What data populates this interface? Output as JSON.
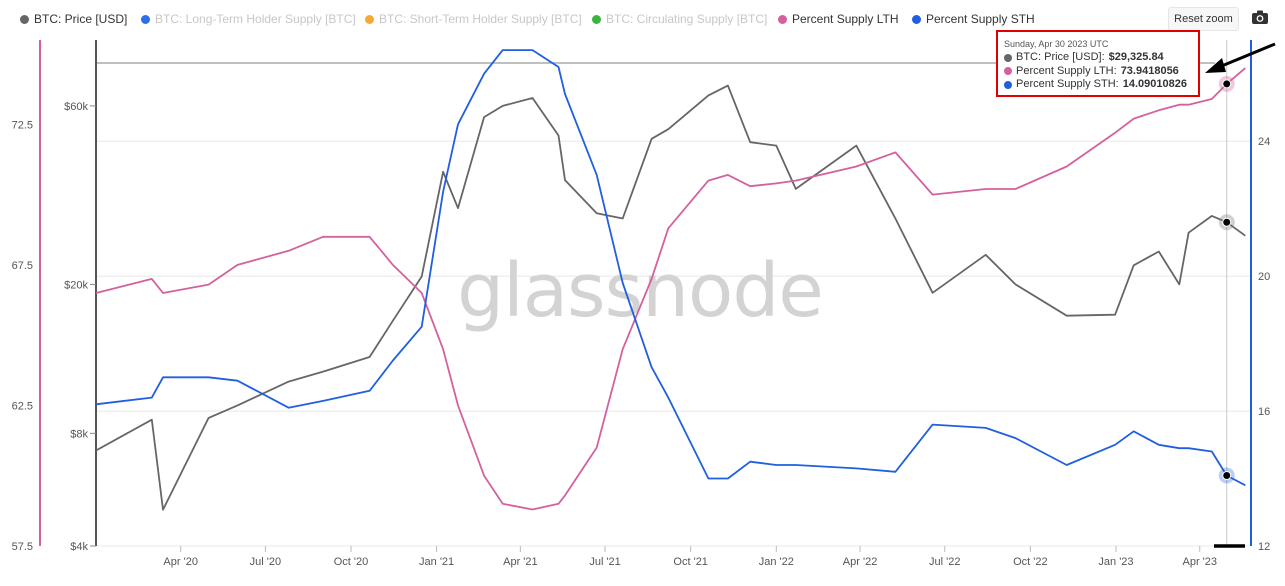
{
  "legend": [
    {
      "label": "BTC: Price [USD]",
      "color": "#666666",
      "active": true
    },
    {
      "label": "BTC: Long-Term Holder Supply [BTC]",
      "color": "#2e6ee6",
      "active": false
    },
    {
      "label": "BTC: Short-Term Holder Supply [BTC]",
      "color": "#f7a935",
      "active": false
    },
    {
      "label": "BTC: Circulating Supply [BTC]",
      "color": "#3cb33c",
      "active": false
    },
    {
      "label": "Percent Supply LTH",
      "color": "#d4619e",
      "active": true
    },
    {
      "label": "Percent Supply STH",
      "color": "#1f5fe0",
      "active": true
    }
  ],
  "toolbar": {
    "reset_zoom": "Reset zoom",
    "camera_icon": "camera-icon"
  },
  "watermark": "glassnode",
  "tooltip": {
    "date": "Sunday, Apr 30 2023 UTC",
    "rows": [
      {
        "label": "BTC: Price [USD]:",
        "value": "$29,325.84",
        "color": "#666666"
      },
      {
        "label": "Percent Supply LTH:",
        "value": "73.9418056",
        "color": "#d4619e"
      },
      {
        "label": "Percent Supply STH:",
        "value": "14.09010826",
        "color": "#1f5fe0"
      }
    ]
  },
  "chart_data": {
    "type": "line",
    "x_ticks": [
      "Apr '20",
      "Jul '20",
      "Oct '20",
      "Jan '21",
      "Apr '21",
      "Jul '21",
      "Oct '21",
      "Jan '22",
      "Apr '22",
      "Jul '22",
      "Oct '22",
      "Jan '23",
      "Apr '23"
    ],
    "x": [
      "2020-01-01",
      "2020-03-01",
      "2020-03-13",
      "2020-05-01",
      "2020-06-01",
      "2020-07-26",
      "2020-09-01",
      "2020-10-21",
      "2020-11-15",
      "2020-12-16",
      "2021-01-08",
      "2021-01-24",
      "2021-02-21",
      "2021-03-13",
      "2021-04-14",
      "2021-05-12",
      "2021-05-19",
      "2021-06-22",
      "2021-07-20",
      "2021-08-20",
      "2021-09-07",
      "2021-10-20",
      "2021-11-10",
      "2021-12-04",
      "2022-01-01",
      "2022-01-22",
      "2022-03-28",
      "2022-05-09",
      "2022-06-18",
      "2022-08-14",
      "2022-09-15",
      "2022-11-09",
      "2022-12-31",
      "2023-01-20",
      "2023-02-16",
      "2023-03-10",
      "2023-03-20",
      "2023-04-14",
      "2023-04-30",
      "2023-05-20"
    ],
    "y_left_pct_lth": {
      "ticks": [
        "57.5",
        "62.5",
        "67.5",
        "72.5"
      ],
      "range": [
        57.5,
        75.5
      ]
    },
    "y_price_log": {
      "ticks": [
        "$4k",
        "$8k",
        "$20k",
        "$60k"
      ],
      "range": [
        4000,
        90000
      ]
    },
    "y_right_pct_sth": {
      "ticks": [
        "12",
        "16",
        "20",
        "24"
      ],
      "range": [
        12,
        27
      ]
    },
    "series": [
      {
        "name": "BTC: Price [USD]",
        "axis": "price",
        "color": "#666666",
        "values": [
          7200,
          8700,
          5000,
          8800,
          9500,
          11000,
          11700,
          12800,
          16000,
          21000,
          40000,
          32000,
          56000,
          60000,
          63000,
          50000,
          38000,
          31000,
          30000,
          49000,
          52000,
          64000,
          68000,
          48000,
          47000,
          36000,
          47000,
          30000,
          19000,
          24000,
          20000,
          16500,
          16600,
          22500,
          24500,
          20000,
          27500,
          30500,
          29326,
          27000
        ]
      },
      {
        "name": "Percent Supply LTH",
        "axis": "lth",
        "color": "#d4619e",
        "values": [
          66.5,
          67.0,
          66.5,
          66.8,
          67.5,
          68.0,
          68.5,
          68.5,
          67.5,
          66.5,
          64.5,
          62.5,
          60.0,
          59.0,
          58.8,
          59.0,
          59.3,
          61.0,
          64.5,
          67.0,
          68.8,
          70.5,
          70.7,
          70.3,
          70.4,
          70.5,
          71.0,
          71.5,
          70.0,
          70.2,
          70.2,
          71.0,
          72.2,
          72.7,
          73.0,
          73.2,
          73.2,
          73.4,
          73.94,
          74.5
        ]
      },
      {
        "name": "Percent Supply STH",
        "axis": "sth",
        "color": "#1f5fe0",
        "values": [
          16.2,
          16.4,
          17.0,
          17.0,
          16.9,
          16.1,
          16.3,
          16.6,
          17.5,
          18.5,
          22.5,
          24.5,
          26.0,
          26.7,
          26.7,
          26.2,
          25.4,
          23.0,
          19.8,
          17.3,
          16.4,
          14.0,
          14.0,
          14.5,
          14.4,
          14.4,
          14.3,
          14.2,
          15.6,
          15.5,
          15.2,
          14.4,
          15.0,
          15.4,
          15.0,
          14.9,
          14.9,
          14.8,
          14.09,
          13.8
        ]
      }
    ]
  }
}
